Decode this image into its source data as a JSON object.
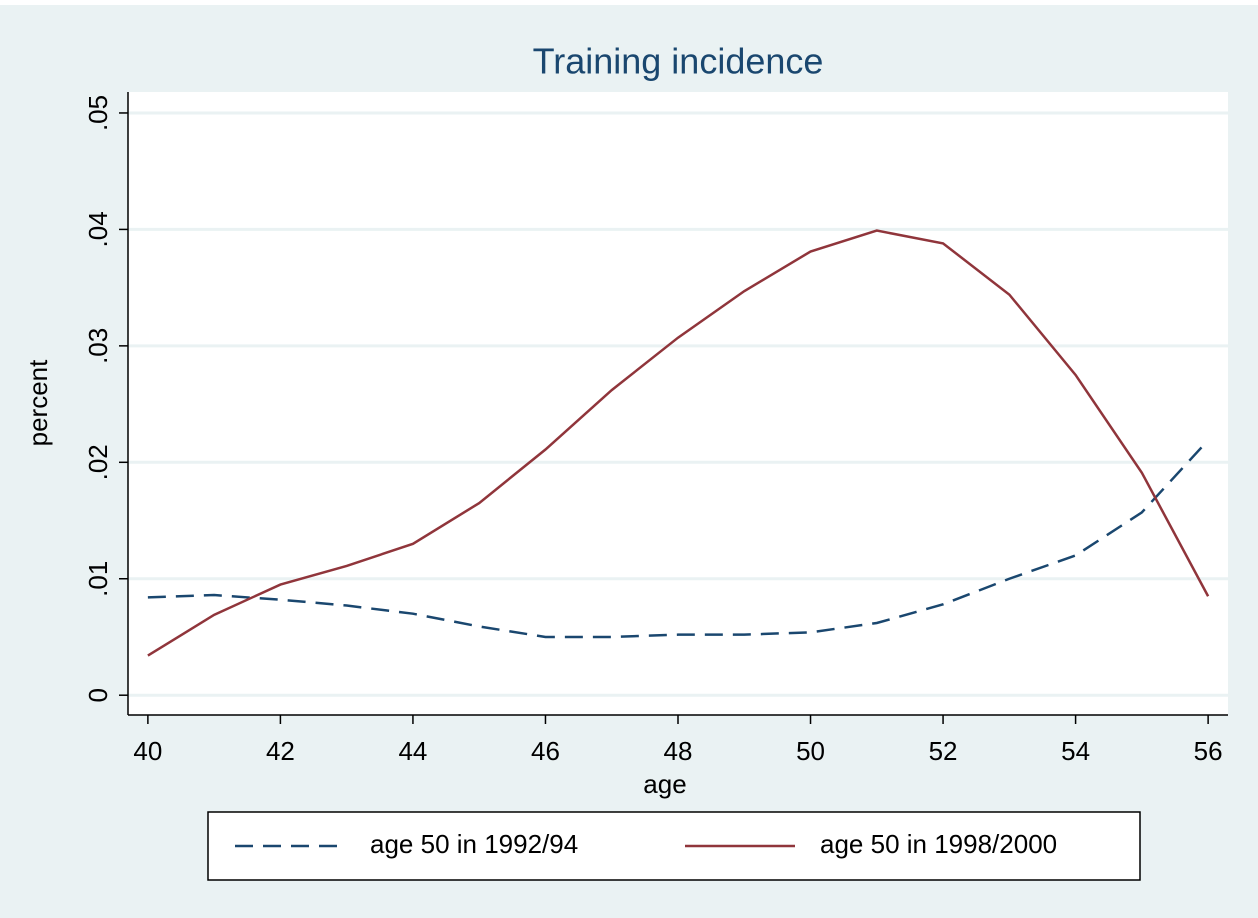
{
  "chart_data": {
    "type": "line",
    "title": "Training incidence",
    "xlabel": "age",
    "ylabel": "percent",
    "x": [
      40,
      41,
      42,
      43,
      44,
      45,
      46,
      47,
      48,
      49,
      50,
      51,
      52,
      53,
      54,
      55,
      56
    ],
    "series": [
      {
        "name": "age 50 in 1992/94",
        "color": "#1a476f",
        "dash": true,
        "values": [
          0.0084,
          0.0086,
          0.0082,
          0.0077,
          0.007,
          0.0059,
          0.005,
          0.005,
          0.0052,
          0.0052,
          0.0054,
          0.0062,
          0.0078,
          0.01,
          0.012,
          0.0157,
          0.0219
        ]
      },
      {
        "name": "age 50 in 1998/2000",
        "color": "#90353b",
        "dash": false,
        "values": [
          0.0034,
          0.0069,
          0.0095,
          0.0111,
          0.013,
          0.0165,
          0.0211,
          0.0262,
          0.0307,
          0.0347,
          0.0381,
          0.0399,
          0.0388,
          0.0344,
          0.0275,
          0.0191,
          0.0085
        ]
      }
    ],
    "xlim": [
      39.7,
      56.3
    ],
    "xticks": [
      40,
      42,
      44,
      46,
      48,
      50,
      52,
      54,
      56
    ],
    "ylim": [
      -0.0017,
      0.0518
    ],
    "yticks": [
      0,
      {
        "value": 0.01,
        "label": ".01"
      },
      {
        "value": 0.02,
        "label": ".02"
      },
      {
        "value": 0.03,
        "label": ".03"
      },
      {
        "value": 0.04,
        "label": ".04"
      },
      {
        "value": 0.05,
        "label": ".05"
      }
    ],
    "grid": true,
    "legend": "bottom"
  }
}
